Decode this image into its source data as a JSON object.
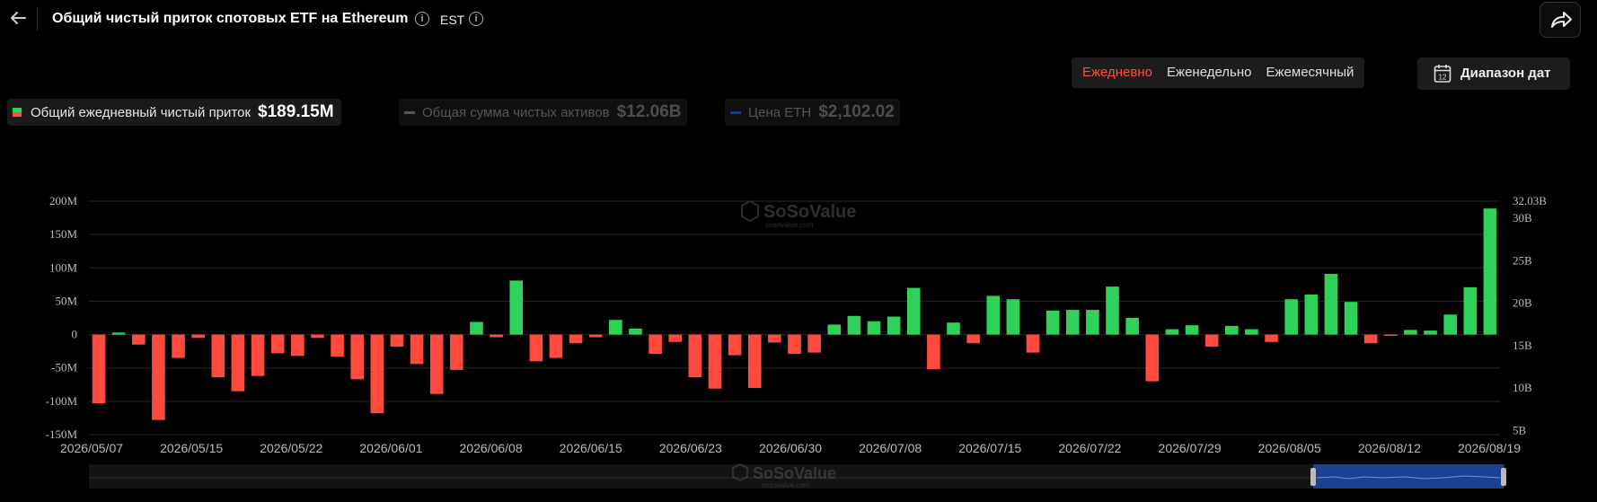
{
  "header": {
    "title": "Общий чистый приток спотовых ETF на Ethereum",
    "timezone": "EST"
  },
  "periods": {
    "daily": "Ежедневно",
    "weekly": "Еженедельно",
    "monthly": "Ежемесячный",
    "active": "daily"
  },
  "date_range_button": "Диапазон дат",
  "date_range_icon_number": "12",
  "legend": [
    {
      "name": "Общий ежедневный чистый приток",
      "value": "$189.15M",
      "active": true
    },
    {
      "name": "Общая сумма чистых активов",
      "value": "$12.06B",
      "active": false
    },
    {
      "name": "Цена ETH",
      "value": "$2,102.02",
      "active": false
    }
  ],
  "watermark": {
    "brand": "SoSoValue",
    "domain": "sosovalue.com"
  },
  "colors": {
    "positive": "#2fd158",
    "negative": "#ff4a3d",
    "active_period": "#ff4d3a",
    "navigator": "#1c4aa8"
  },
  "chart_data": {
    "type": "bar",
    "title": "Общий чистый приток спотовых ETF на Ethereum",
    "x_ticks": [
      "2026/05/07",
      "2026/05/15",
      "2026/05/22",
      "2026/06/01",
      "2026/06/08",
      "2026/06/15",
      "2026/06/23",
      "2026/06/30",
      "2026/07/08",
      "2026/07/15",
      "2026/07/22",
      "2026/07/29",
      "2026/08/05",
      "2026/08/12",
      "2026/08/19"
    ],
    "y_left": {
      "ticks": [
        "200M",
        "150M",
        "100M",
        "50M",
        "0",
        "-50M",
        "-100M",
        "-150M"
      ],
      "min": -150,
      "max": 200
    },
    "y_right": {
      "ticks": [
        "32.03B",
        "30B",
        "25B",
        "20B",
        "15B",
        "10B",
        "5B"
      ],
      "min": 4.5,
      "max": 32.03
    },
    "series": [
      {
        "name": "Общий ежедневный чистый приток",
        "unit": "M USD",
        "values": [
          -103,
          3,
          -15,
          -128,
          -35,
          -5,
          -64,
          -85,
          -62,
          -28,
          -32,
          -5,
          -33,
          -67,
          -118,
          -18,
          -44,
          -89,
          -53,
          19,
          -4,
          81,
          -40,
          -35,
          -13,
          -4,
          22,
          9,
          -29,
          -11,
          -64,
          -81,
          -31,
          -80,
          -12,
          -29,
          -27,
          15,
          28,
          20,
          27,
          70,
          -52,
          18,
          -13,
          58,
          53,
          -27,
          36,
          37,
          37,
          72,
          25,
          -70,
          8,
          14,
          -18,
          13,
          8,
          -11,
          53,
          60,
          91,
          49,
          -13,
          -2,
          7,
          6,
          30,
          71,
          189
        ]
      }
    ]
  }
}
